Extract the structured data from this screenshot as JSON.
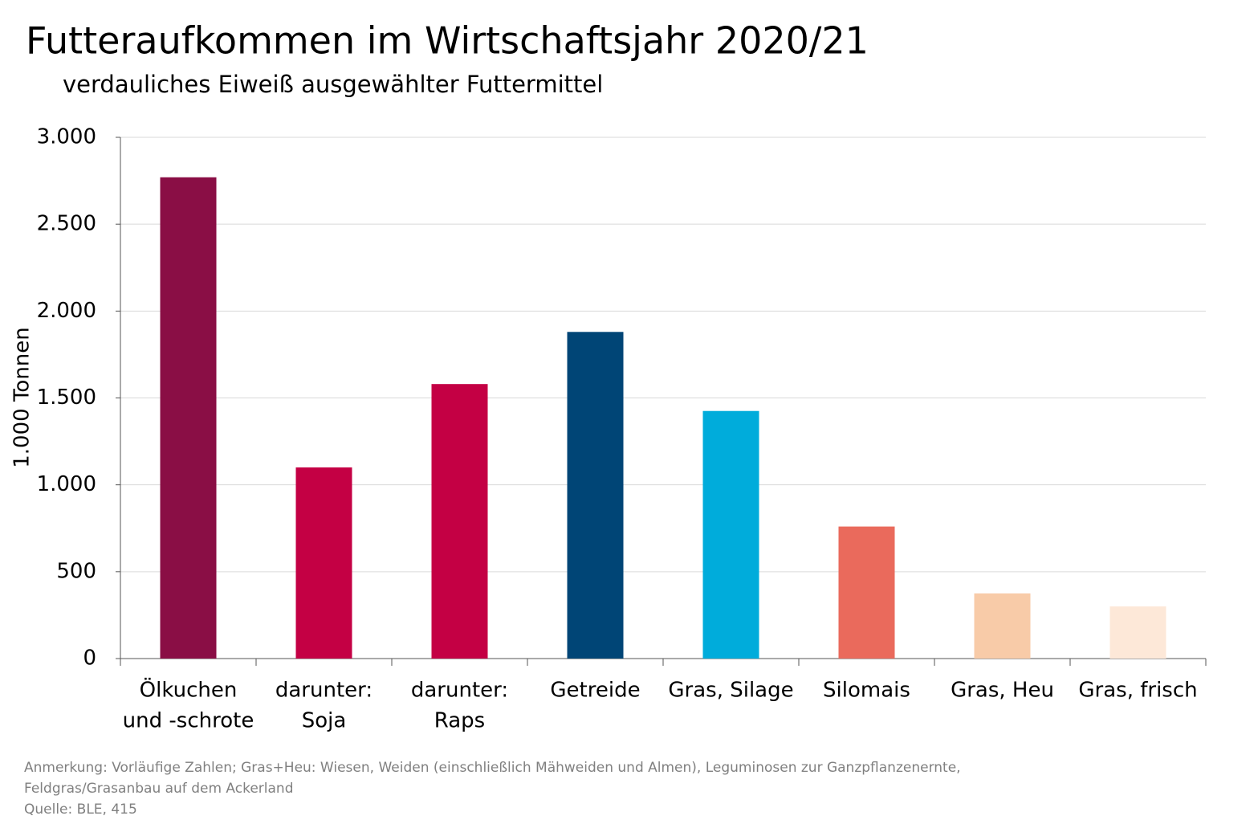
{
  "chart_data": {
    "type": "bar",
    "title": "Futteraufkommen im Wirtschaftsjahr 2020/21",
    "subtitle": "verdauliches Eiweiß ausgewählter Futtermittel",
    "y_label": "1.000 Tonnen",
    "categories": [
      [
        "Ölkuchen",
        "und -schrote"
      ],
      [
        "darunter:",
        "Soja"
      ],
      [
        "darunter:",
        "Raps"
      ],
      [
        "Getreide"
      ],
      [
        "Gras, Silage"
      ],
      [
        "Silomais"
      ],
      [
        "Gras, Heu"
      ],
      [
        "Gras, frisch"
      ]
    ],
    "values": [
      2770,
      1100,
      1580,
      1880,
      1425,
      760,
      375,
      300
    ],
    "colors": [
      "#8a0e45",
      "#c40044",
      "#c40044",
      "#004576",
      "#00acdb",
      "#ea6a5c",
      "#f8cba8",
      "#fde8d8"
    ],
    "ylim": [
      0,
      3000
    ],
    "yticks": [
      0,
      500,
      {
        "value": 1000,
        "label": "1.000"
      },
      {
        "value": 1500,
        "label": "1.500"
      },
      {
        "value": 2000,
        "label": "2.000"
      },
      {
        "value": 2500,
        "label": "2.500"
      },
      {
        "value": 3000,
        "label": "3.000"
      }
    ],
    "grid": true,
    "notes": [
      "Anmerkung: Vorläufige Zahlen; Gras+Heu: Wiesen, Weiden (einschließlich Mähweiden und Almen), Leguminosen zur Ganzpflanzenernte,",
      "Feldgras/Grasanbau auf dem Ackerland",
      "Quelle: BLE, 415"
    ]
  }
}
